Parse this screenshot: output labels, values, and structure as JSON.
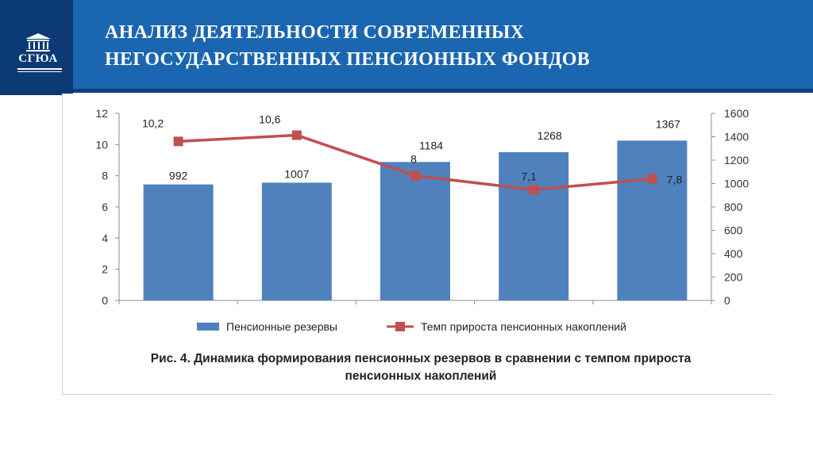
{
  "header": {
    "title_line1": "АНАЛИЗ ДЕЯТЕЛЬНОСТИ СОВРЕМЕННЫХ",
    "title_line2": "НЕГОСУДАРСТВЕННЫХ ПЕНСИОННЫХ ФОНДОВ",
    "logo_text": "СГЮА"
  },
  "colors": {
    "header_blue": "#1b66b0",
    "logo_navy": "#0b3a74",
    "bar_blue": "#4f81bd",
    "line_red": "#c0504d"
  },
  "chart_data": {
    "type": "bar+line",
    "categories": [
      "",
      "",
      "",
      "",
      ""
    ],
    "series": [
      {
        "name": "Пенсионные резервы",
        "type": "bar",
        "axis": "right",
        "values": [
          992,
          1007,
          1184,
          1268,
          1367
        ],
        "labels": [
          "992",
          "1007",
          "1184",
          "1268",
          "1367"
        ]
      },
      {
        "name": "Темп прироста пенсионных накоплений",
        "type": "line",
        "axis": "left",
        "values": [
          10.2,
          10.6,
          8,
          7.1,
          7.8
        ],
        "labels": [
          "10,2",
          "10,6",
          "8",
          "7,1",
          "7,8"
        ]
      }
    ],
    "y_left": {
      "min": 0,
      "max": 12,
      "ticks": [
        "0",
        "2",
        "4",
        "6",
        "8",
        "10",
        "12"
      ]
    },
    "y_right": {
      "min": 0,
      "max": 1600,
      "ticks": [
        "0",
        "200",
        "400",
        "600",
        "800",
        "1000",
        "1200",
        "1400",
        "1600"
      ]
    },
    "legend_position": "bottom",
    "grid": false
  },
  "caption": {
    "line1": "Рис. 4. Динамика формирования пенсионных резервов в сравнении с темпом прироста",
    "line2": "пенсионных накоплений"
  }
}
